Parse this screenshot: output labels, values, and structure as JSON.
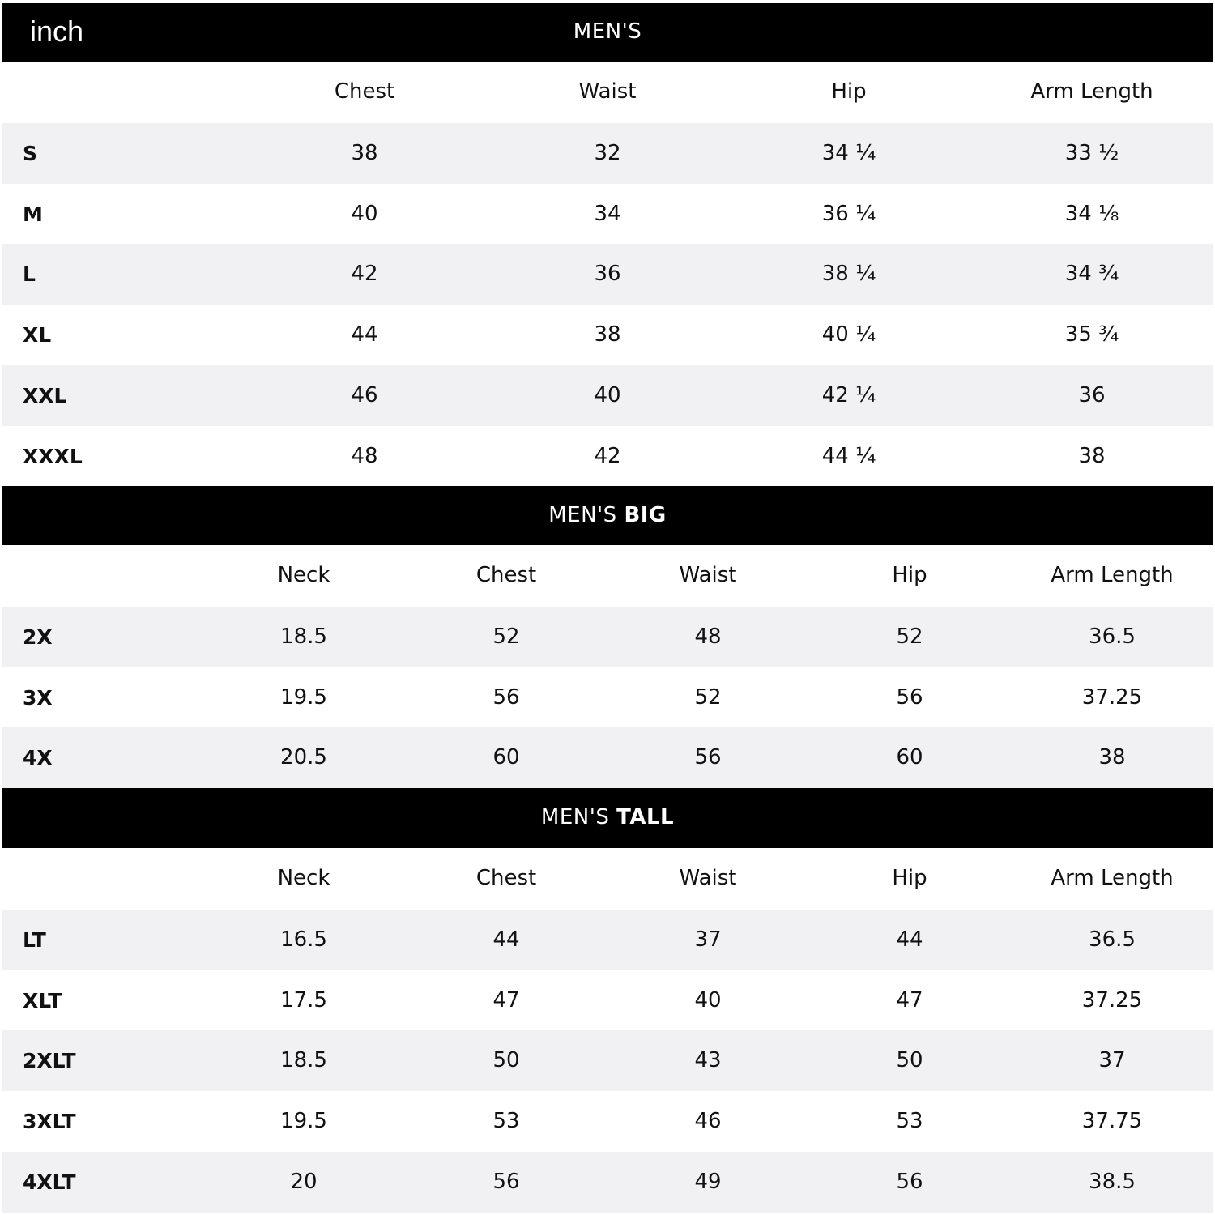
{
  "unit": "inch",
  "sections": [
    {
      "title_regular": "MEN'S",
      "title_bold": "",
      "columns": [
        "Chest",
        "Waist",
        "Hip",
        "Arm Length"
      ],
      "rows": [
        {
          "size": "S",
          "values": [
            "38",
            "32",
            "34 ¼",
            "33 ½"
          ]
        },
        {
          "size": "M",
          "values": [
            "40",
            "34",
            "36 ¼",
            "34 ⅛"
          ]
        },
        {
          "size": "L",
          "values": [
            "42",
            "36",
            "38 ¼",
            "34 ¾"
          ]
        },
        {
          "size": "XL",
          "values": [
            "44",
            "38",
            "40 ¼",
            "35 ¾"
          ]
        },
        {
          "size": "XXL",
          "values": [
            "46",
            "40",
            "42 ¼",
            "36"
          ]
        },
        {
          "size": "XXXL",
          "values": [
            "48",
            "42",
            "44 ¼",
            "38"
          ]
        }
      ]
    },
    {
      "title_regular": "MEN'S ",
      "title_bold": "BIG",
      "columns": [
        "Neck",
        "Chest",
        "Waist",
        "Hip",
        "Arm Length"
      ],
      "rows": [
        {
          "size": "2X",
          "values": [
            "18.5",
            "52",
            "48",
            "52",
            "36.5"
          ]
        },
        {
          "size": "3X",
          "values": [
            "19.5",
            "56",
            "52",
            "56",
            "37.25"
          ]
        },
        {
          "size": "4X",
          "values": [
            "20.5",
            "60",
            "56",
            "60",
            "38"
          ]
        }
      ]
    },
    {
      "title_regular": "MEN'S ",
      "title_bold": "TALL",
      "columns": [
        "Neck",
        "Chest",
        "Waist",
        "Hip",
        "Arm Length"
      ],
      "rows": [
        {
          "size": "LT",
          "values": [
            "16.5",
            "44",
            "37",
            "44",
            "36.5"
          ]
        },
        {
          "size": "XLT",
          "values": [
            "17.5",
            "47",
            "40",
            "47",
            "37.25"
          ]
        },
        {
          "size": "2XLT",
          "values": [
            "18.5",
            "50",
            "43",
            "50",
            "37"
          ]
        },
        {
          "size": "3XLT",
          "values": [
            "19.5",
            "53",
            "46",
            "53",
            "37.75"
          ]
        },
        {
          "size": "4XLT",
          "values": [
            "20",
            "56",
            "49",
            "56",
            "38.5"
          ]
        }
      ]
    }
  ]
}
